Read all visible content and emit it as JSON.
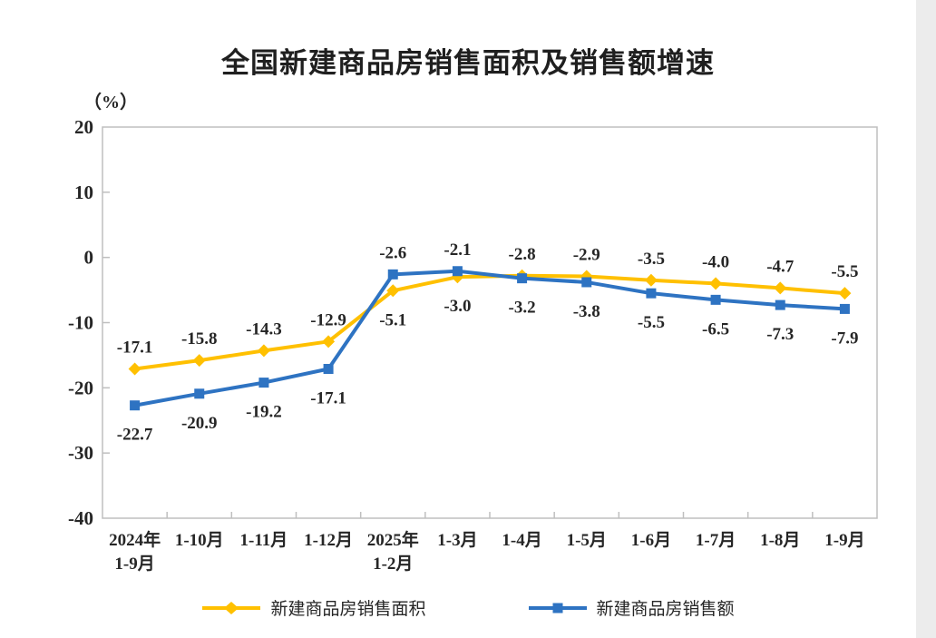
{
  "title": "全国新建商品房销售面积及销售额增速",
  "colors": {
    "sales_area": "#FFC000",
    "sales_amount": "#2E73C2",
    "frame": "#BFBFBF",
    "text": "#262626",
    "title_text": "#1F1F1F",
    "page_background": "#FFFFFF",
    "right_edge_strip": "#ECECEC"
  },
  "chart_data": {
    "type": "line",
    "title": "全国新建商品房销售面积及销售额增速",
    "ylabel": "（%）",
    "xlabel": "",
    "categories": [
      "2024年\n1-9月",
      "1-10月",
      "1-11月",
      "1-12月",
      "2025年\n1-2月",
      "1-3月",
      "1-4月",
      "1-5月",
      "1-6月",
      "1-7月",
      "1-8月",
      "1-9月"
    ],
    "series": [
      {
        "name": "新建商品房销售面积",
        "marker": "diamond",
        "color": "#FFC000",
        "values": [
          -17.1,
          -15.8,
          -14.3,
          -12.9,
          -5.1,
          -3.0,
          -2.8,
          -2.9,
          -3.5,
          -4.0,
          -4.7,
          -5.5
        ]
      },
      {
        "name": "新建商品房销售额",
        "marker": "square",
        "color": "#2E73C2",
        "values": [
          -22.7,
          -20.9,
          -19.2,
          -17.1,
          -2.6,
          -2.1,
          -3.2,
          -3.8,
          -5.5,
          -6.5,
          -7.3,
          -7.9
        ]
      }
    ],
    "ylim": [
      -40,
      20
    ],
    "ytick_step": 10,
    "grid": false,
    "data_labels": true,
    "legend_position": "bottom"
  }
}
